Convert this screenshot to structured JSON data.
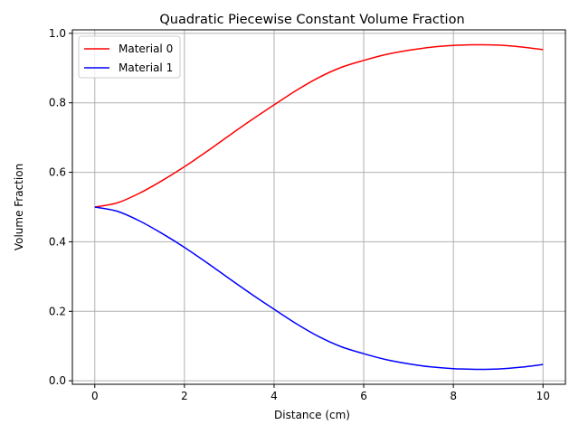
{
  "chart_data": {
    "type": "line",
    "title": "Quadratic Piecewise Constant Volume Fraction",
    "xlabel": "Distance (cm)",
    "ylabel": "Volume Fraction",
    "xlim": [
      -0.5,
      10.5
    ],
    "ylim": [
      -0.01,
      1.01
    ],
    "x_ticks": [
      0,
      2,
      4,
      6,
      8,
      10
    ],
    "y_ticks": [
      0.0,
      0.2,
      0.4,
      0.6,
      0.8,
      1.0
    ],
    "x_tick_labels": [
      "0",
      "2",
      "4",
      "6",
      "8",
      "10"
    ],
    "y_tick_labels": [
      "0.0",
      "0.2",
      "0.4",
      "0.6",
      "0.8",
      "1.0"
    ],
    "grid": true,
    "legend": {
      "position": "upper-left"
    },
    "series": [
      {
        "name": "Material 0",
        "color": "#ff0000",
        "x": [
          0,
          0.5,
          1,
          1.5,
          2,
          2.5,
          3,
          3.5,
          4,
          4.5,
          5,
          5.5,
          6,
          6.5,
          7,
          7.5,
          8,
          8.5,
          9,
          9.5,
          10
        ],
        "y": [
          0.5,
          0.512,
          0.54,
          0.576,
          0.616,
          0.66,
          0.706,
          0.751,
          0.794,
          0.836,
          0.873,
          0.902,
          0.922,
          0.939,
          0.951,
          0.96,
          0.965,
          0.967,
          0.966,
          0.961,
          0.953
        ]
      },
      {
        "name": "Material 1",
        "color": "#0000ff",
        "x": [
          0,
          0.5,
          1,
          1.5,
          2,
          2.5,
          3,
          3.5,
          4,
          4.5,
          5,
          5.5,
          6,
          6.5,
          7,
          7.5,
          8,
          8.5,
          9,
          9.5,
          10
        ],
        "y": [
          0.5,
          0.488,
          0.46,
          0.424,
          0.384,
          0.34,
          0.294,
          0.249,
          0.206,
          0.164,
          0.127,
          0.098,
          0.078,
          0.061,
          0.049,
          0.04,
          0.035,
          0.033,
          0.034,
          0.039,
          0.047
        ]
      }
    ]
  }
}
